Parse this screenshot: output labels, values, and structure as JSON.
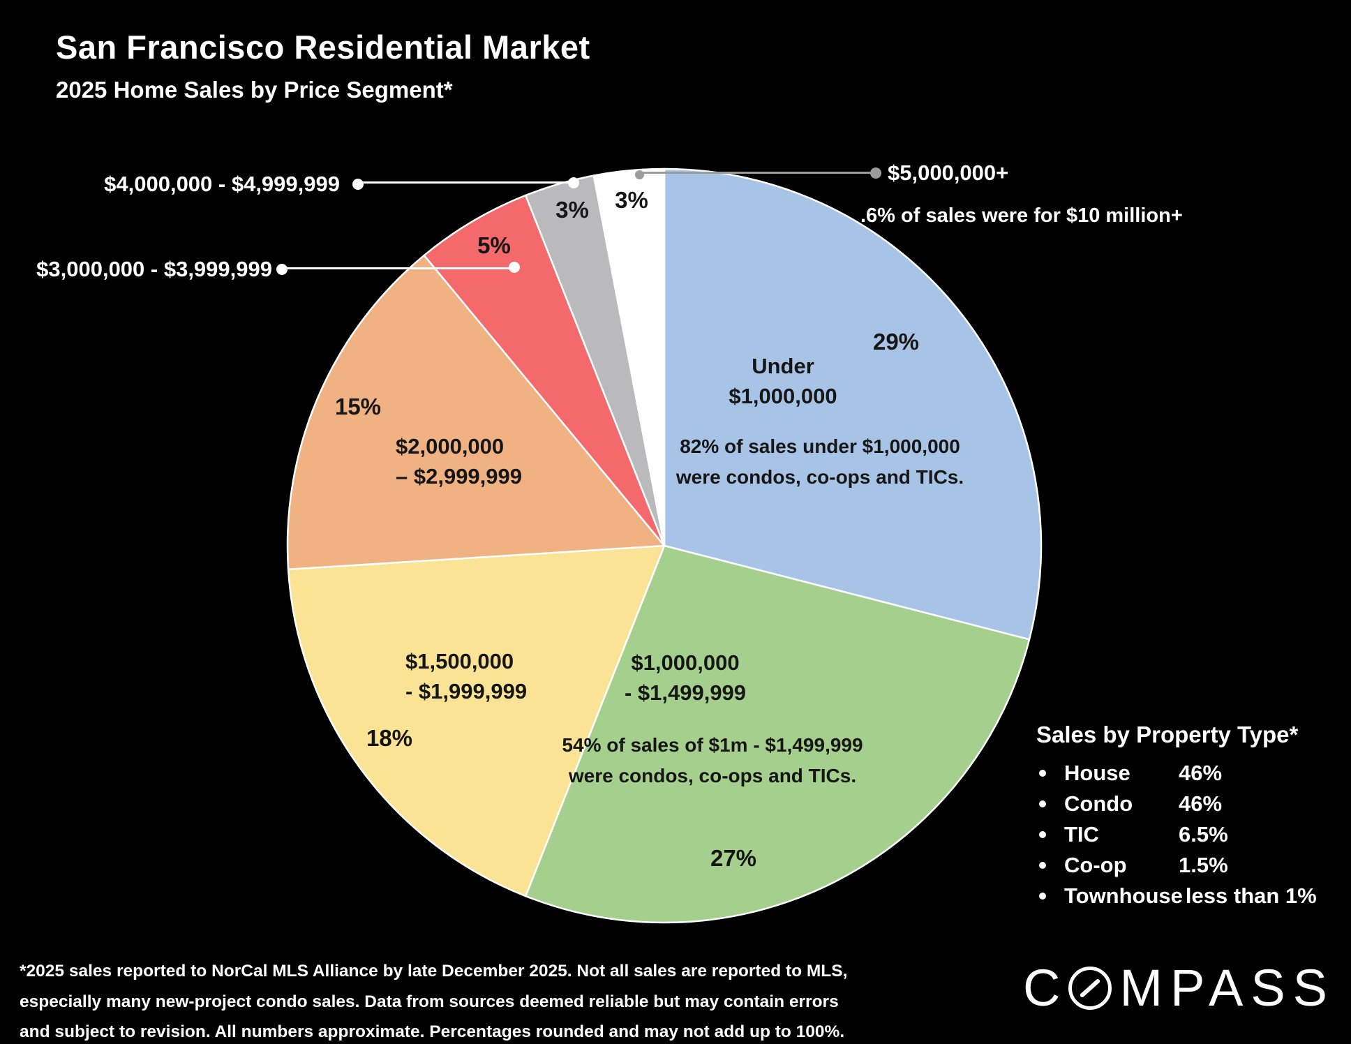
{
  "header": {
    "title": "San Francisco Residential Market",
    "subtitle": "2025 Home Sales by Price Segment*"
  },
  "chart_data": {
    "type": "pie",
    "title": "2025 Home Sales by Price Segment",
    "units": "percent of total home sales",
    "start_angle_deg": 0,
    "direction": "clockwise",
    "background": "#000000",
    "slices": [
      {
        "label": "Under $1,000,000",
        "pct": 29,
        "pct_label": "29%",
        "color": "#a7c4e6",
        "range_lines": [
          "Under",
          "$1,000,000"
        ],
        "note_lines": [
          "82% of sales under $1,000,000",
          "were condos, co-ops and TICs."
        ]
      },
      {
        "label": "$1,000,000 - $1,499,999",
        "pct": 27,
        "pct_label": "27%",
        "color": "#a5cf8d",
        "range_lines": [
          "$1,000,000",
          "- $1,499,999"
        ],
        "note_lines": [
          "54% of sales of $1m - $1,499,999",
          "were condos, co-ops and TICs."
        ]
      },
      {
        "label": "$1,500,000 - $1,999,999",
        "pct": 18,
        "pct_label": "18%",
        "color": "#fbe395",
        "range_lines": [
          "$1,500,000",
          "- $1,999,999"
        ]
      },
      {
        "label": "$2,000,000 – $2,999,999",
        "pct": 15,
        "pct_label": "15%",
        "color": "#f0b183",
        "range_lines": [
          "$2,000,000",
          "– $2,999,999"
        ]
      },
      {
        "label": "$3,000,000 - $3,999,999",
        "pct": 5,
        "pct_label": "5%",
        "color": "#f4696b"
      },
      {
        "label": "$4,000,000 - $4,999,999",
        "pct": 3,
        "pct_label": "3%",
        "color": "#bababc"
      },
      {
        "label": "$5,000,000+",
        "pct": 3,
        "pct_label": "3%",
        "color": "#ffffff",
        "note": ".6% of sales were for $10 million+"
      }
    ]
  },
  "property_type": {
    "title": "Sales by Property Type*",
    "items": [
      {
        "name": "House",
        "value": "46%"
      },
      {
        "name": "Condo",
        "value": "46%"
      },
      {
        "name": "TIC",
        "value": "6.5%"
      },
      {
        "name": "Co-op",
        "value": "1.5%"
      },
      {
        "name": "Townhouse",
        "value": "less than 1%"
      }
    ]
  },
  "footnote_lines": [
    "*2025 sales reported to NorCal MLS Alliance by late December 2025. Not all sales are reported to MLS,",
    "especially many new-project condo sales. Data from sources deemed reliable but may contain errors",
    "and subject to revision. All numbers approximate. Percentages rounded and may not add up to 100%."
  ],
  "brand": {
    "name": "COMPASS",
    "prefix": "C",
    "suffix": "MPASS"
  }
}
